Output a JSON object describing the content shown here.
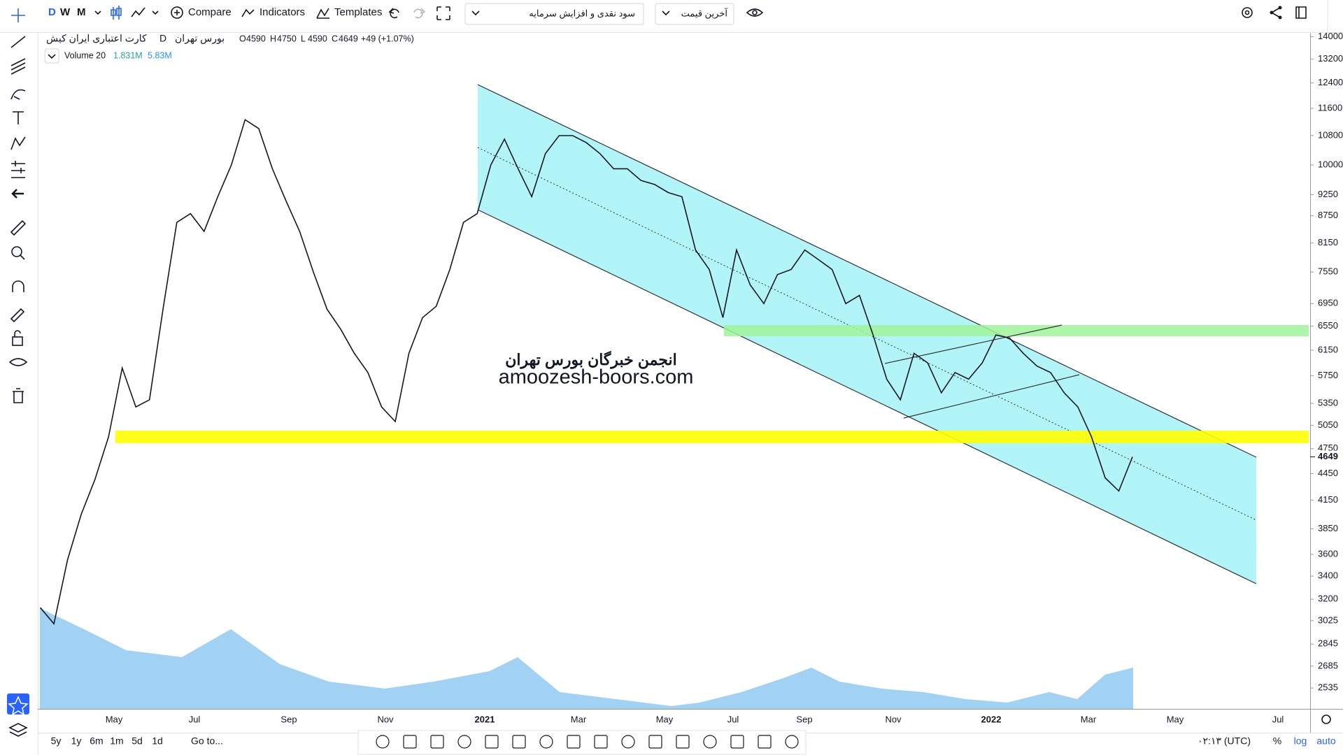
{
  "toolbar": {
    "intervals": [
      "D",
      "W",
      "M"
    ],
    "compare": "Compare",
    "indicators": "Indicators",
    "templates": "Templates",
    "adjustment": "سود نقدی و افزایش سرمایه",
    "price_source": "آخرین قیمت"
  },
  "legend": {
    "symbol": "کارت اعتباری ایران کیش",
    "interval": "D",
    "exchange": "بورس تهران",
    "ohlc": [
      {
        "label": "O",
        "value": 4590
      },
      {
        "label": "H",
        "value": 4750
      },
      {
        "label": "L",
        "value": 4590
      },
      {
        "label": "C",
        "value": 4649
      }
    ],
    "change": "+49 (+1.07%)",
    "volume": {
      "name": "Volume 20",
      "value": "1.831M",
      "ma": "5.83M"
    }
  },
  "watermark": {
    "title": "انجمن خبرگان بورس تهران",
    "url": "amoozesh-boors.com"
  },
  "chart_data": {
    "type": "line",
    "log_scale": true,
    "color": "#131722",
    "values": [
      3130,
      3000,
      3550,
      4000,
      4380,
      4900,
      5870,
      5300,
      5400,
      6870,
      8600,
      8800,
      8400,
      9200,
      10000,
      11260,
      11000,
      9900,
      9100,
      8400,
      7550,
      6850,
      6500,
      6100,
      5800,
      5300,
      5100,
      6100,
      6700,
      6900,
      7600,
      8600,
      8800,
      10000,
      10700,
      9900,
      9200,
      10300,
      10800,
      10800,
      10600,
      10300,
      9900,
      9900,
      9600,
      9500,
      9300,
      9200,
      8000,
      7600,
      6700,
      8000,
      7300,
      6950,
      7500,
      7600,
      8000,
      7800,
      7600,
      6950,
      7100,
      6400,
      5700,
      5400,
      6100,
      5950,
      5500,
      5800,
      5700,
      5950,
      6400,
      6350,
      6100,
      5900,
      5800,
      5500,
      5300,
      4900,
      4400,
      4250,
      4649
    ],
    "ylim": [
      2400,
      14350
    ],
    "yticks": [
      14000,
      13200,
      12400,
      11600,
      10800,
      10000,
      9250,
      8750,
      8150,
      7550,
      6950,
      6550,
      6150,
      5750,
      5350,
      5050,
      4750,
      4450,
      4150,
      3850,
      3600,
      3400,
      3200,
      3025,
      2845,
      2685,
      2535
    ],
    "x_labels": [
      "May",
      "Jul",
      "Sep",
      "Nov",
      "2021",
      "Mar",
      "May",
      "Jul",
      "Sep",
      "Nov",
      "2022",
      "Mar",
      "May",
      "Jul"
    ],
    "last_price": 4649
  },
  "bottom_bar": {
    "ranges": [
      "5y",
      "1y",
      "6m",
      "1m",
      "5d",
      "1d"
    ],
    "goto": "Go to...",
    "clock": "۰۲:۱۳ (UTC)",
    "percent": "%",
    "log": "log",
    "auto": "auto"
  }
}
